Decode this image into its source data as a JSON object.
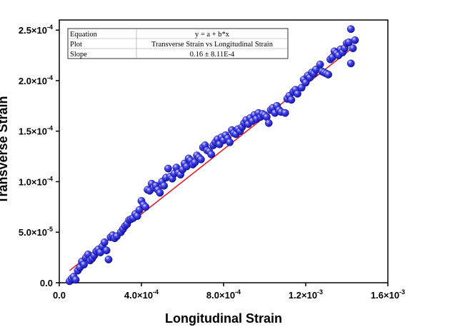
{
  "chart_data": {
    "type": "scatter",
    "title": "",
    "xlabel": "Longitudinal Strain",
    "ylabel": "Transverse Strain",
    "xlim": [
      0,
      0.0016
    ],
    "ylim": [
      0,
      0.00026
    ],
    "x_ticks": [
      {
        "value": 0,
        "label": "0.0",
        "exp": ""
      },
      {
        "value": 0.0004,
        "label": "4.0×10",
        "exp": "-4"
      },
      {
        "value": 0.0008,
        "label": "8.0×10",
        "exp": "-4"
      },
      {
        "value": 0.0012,
        "label": "1.2×10",
        "exp": "-3"
      },
      {
        "value": 0.0016,
        "label": "1.6×10",
        "exp": "-3"
      }
    ],
    "y_ticks": [
      {
        "value": 0,
        "label": "0.0",
        "exp": ""
      },
      {
        "value": 5e-05,
        "label": "5.0×10",
        "exp": "-5"
      },
      {
        "value": 0.0001,
        "label": "1.0×10",
        "exp": "-4"
      },
      {
        "value": 0.00015,
        "label": "1.5×10",
        "exp": "-4"
      },
      {
        "value": 0.0002,
        "label": "2.0×10",
        "exp": "-4"
      },
      {
        "value": 0.00025,
        "label": "2.5×10",
        "exp": "-4"
      }
    ],
    "fit": {
      "intercept": 4e-06,
      "slope": 0.16,
      "x_range": [
        5e-05,
        0.00144
      ],
      "color": "#e0202a"
    },
    "marker_color": "#1a1adc",
    "legend": {
      "placement": "top-left",
      "rows": [
        {
          "key": "Equation",
          "value": "y = a + b*x"
        },
        {
          "key": "Plot",
          "value": "Transverse Strain vs Longitudinal Strain"
        },
        {
          "key": "Slope",
          "value": "0.16 ± 8.11E-4"
        }
      ]
    },
    "points": [
      [
        5e-05,
        1.5e-06
      ],
      [
        6e-05,
        4e-06
      ],
      [
        7e-05,
        6e-06
      ],
      [
        8e-05,
        3e-06
      ],
      [
        9e-05,
        1.2e-05
      ],
      [
        0.0001,
        1.5e-05
      ],
      [
        0.00011,
        2.1e-05
      ],
      [
        0.00012,
        1.8e-05
      ],
      [
        0.00013,
        2.5e-05
      ],
      [
        0.00014,
        2.8e-05
      ],
      [
        0.00015,
        2.2e-05
      ],
      [
        0.00016,
        2.4e-05
      ],
      [
        0.00017,
        2.7e-05
      ],
      [
        0.00018,
        3.1e-05
      ],
      [
        0.00019,
        3.3e-05
      ],
      [
        0.0002,
        3e-05
      ],
      [
        0.00021,
        3.6e-05
      ],
      [
        0.00022,
        4e-05
      ],
      [
        0.00023,
        3.2e-05
      ],
      [
        0.00024,
        2.3e-05
      ],
      [
        0.00025,
        4.5e-05
      ],
      [
        0.00026,
        4.7e-05
      ],
      [
        0.00027,
        4.4e-05
      ],
      [
        0.00028,
        4.6e-05
      ],
      [
        0.0003,
        5e-05
      ],
      [
        0.00031,
        5.3e-05
      ],
      [
        0.00032,
        5.6e-05
      ],
      [
        0.00033,
        5.8e-05
      ],
      [
        0.00034,
        6.2e-05
      ],
      [
        0.00035,
        6.3e-05
      ],
      [
        0.00036,
        6.4e-05
      ],
      [
        0.00037,
        6.8e-05
      ],
      [
        0.00038,
        6.6e-05
      ],
      [
        0.00039,
        7.2e-05
      ],
      [
        0.0004,
        8.1e-05
      ],
      [
        0.00041,
        7.7e-05
      ],
      [
        0.00042,
        7.5e-05
      ],
      [
        0.00043,
        9.2e-05
      ],
      [
        0.00044,
        9.1e-05
      ],
      [
        0.00045,
        9.8e-05
      ],
      [
        0.00046,
        9.4e-05
      ],
      [
        0.00047,
        9.6e-05
      ],
      [
        0.00048,
        9.2e-05
      ],
      [
        0.00049,
        8.9e-05
      ],
      [
        0.0005,
        0.0001
      ],
      [
        0.00051,
        9.6e-05
      ],
      [
        0.00052,
        0.000104
      ],
      [
        0.00053,
        0.000113
      ],
      [
        0.00054,
        0.000105
      ],
      [
        0.00055,
        0.000103
      ],
      [
        0.00056,
        0.000108
      ],
      [
        0.00057,
        0.000114
      ],
      [
        0.00058,
        0.000109
      ],
      [
        0.00059,
        0.000107
      ],
      [
        0.0006,
        0.000112
      ],
      [
        0.00061,
        0.000118
      ],
      [
        0.00062,
        0.000115
      ],
      [
        0.00063,
        0.000123
      ],
      [
        0.00064,
        0.000121
      ],
      [
        0.00065,
        0.000117
      ],
      [
        0.00066,
        0.000119
      ],
      [
        0.00067,
        0.000126
      ],
      [
        0.00068,
        0.000124
      ],
      [
        0.00069,
        0.000122
      ],
      [
        0.0007,
        0.000134
      ],
      [
        0.00071,
        0.000136
      ],
      [
        0.00072,
        0.000131
      ],
      [
        0.00073,
        0.00013
      ],
      [
        0.00074,
        0.000127
      ],
      [
        0.00075,
        0.000136
      ],
      [
        0.00076,
        0.000139
      ],
      [
        0.00077,
        0.000142
      ],
      [
        0.00078,
        0.000137
      ],
      [
        0.00079,
        0.000144
      ],
      [
        0.0008,
        0.000141
      ],
      [
        0.00081,
        0.000146
      ],
      [
        0.00082,
        0.000143
      ],
      [
        0.00083,
        0.000139
      ],
      [
        0.00084,
        0.000151
      ],
      [
        0.00085,
        0.000148
      ],
      [
        0.00086,
        0.000147
      ],
      [
        0.00087,
        0.000152
      ],
      [
        0.00088,
        0.00015
      ],
      [
        0.00089,
        0.000154
      ],
      [
        0.0009,
        0.000158
      ],
      [
        0.00091,
        0.000161
      ],
      [
        0.00092,
        0.000157
      ],
      [
        0.00093,
        0.000163
      ],
      [
        0.00094,
        0.00016
      ],
      [
        0.00095,
        0.000166
      ],
      [
        0.00096,
        0.000162
      ],
      [
        0.00097,
        0.000168
      ],
      [
        0.00098,
        0.000164
      ],
      [
        0.00099,
        0.000167
      ],
      [
        0.001,
        0.000166
      ],
      [
        0.00101,
        0.000164
      ],
      [
        0.00102,
        0.000158
      ],
      [
        0.00103,
        0.000171
      ],
      [
        0.00104,
        0.000173
      ],
      [
        0.00105,
        0.000168
      ],
      [
        0.00106,
        0.000175
      ],
      [
        0.00107,
        0.000171
      ],
      [
        0.00108,
        0.000169
      ],
      [
        0.0011,
        0.000168
      ],
      [
        0.00111,
        0.000182
      ],
      [
        0.00112,
        0.000185
      ],
      [
        0.00113,
        0.000181
      ],
      [
        0.00114,
        0.000189
      ],
      [
        0.00115,
        0.000191
      ],
      [
        0.00116,
        0.000187
      ],
      [
        0.00118,
        0.000193
      ],
      [
        0.00119,
        0.000201
      ],
      [
        0.0012,
        0.000198
      ],
      [
        0.00121,
        0.000205
      ],
      [
        0.00122,
        0.000203
      ],
      [
        0.00123,
        0.000208
      ],
      [
        0.00124,
        0.000207
      ],
      [
        0.00125,
        0.000211
      ],
      [
        0.00127,
        0.000216
      ],
      [
        0.00128,
        0.000209
      ],
      [
        0.00129,
        0.000208
      ],
      [
        0.0013,
        0.000207
      ],
      [
        0.00131,
        0.000206
      ],
      [
        0.00132,
        0.000221
      ],
      [
        0.00133,
        0.000223
      ],
      [
        0.00134,
        0.000229
      ],
      [
        0.00135,
        0.000227
      ],
      [
        0.00136,
        0.000225
      ],
      [
        0.00137,
        0.000231
      ],
      [
        0.00138,
        0.000228
      ],
      [
        0.00139,
        0.000232
      ],
      [
        0.0014,
        0.000237
      ],
      [
        0.00141,
        0.000238
      ],
      [
        0.00142,
        0.000217
      ],
      [
        0.00142,
        0.000251
      ],
      [
        0.00143,
        0.000232
      ],
      [
        0.00144,
        0.00024
      ]
    ]
  }
}
